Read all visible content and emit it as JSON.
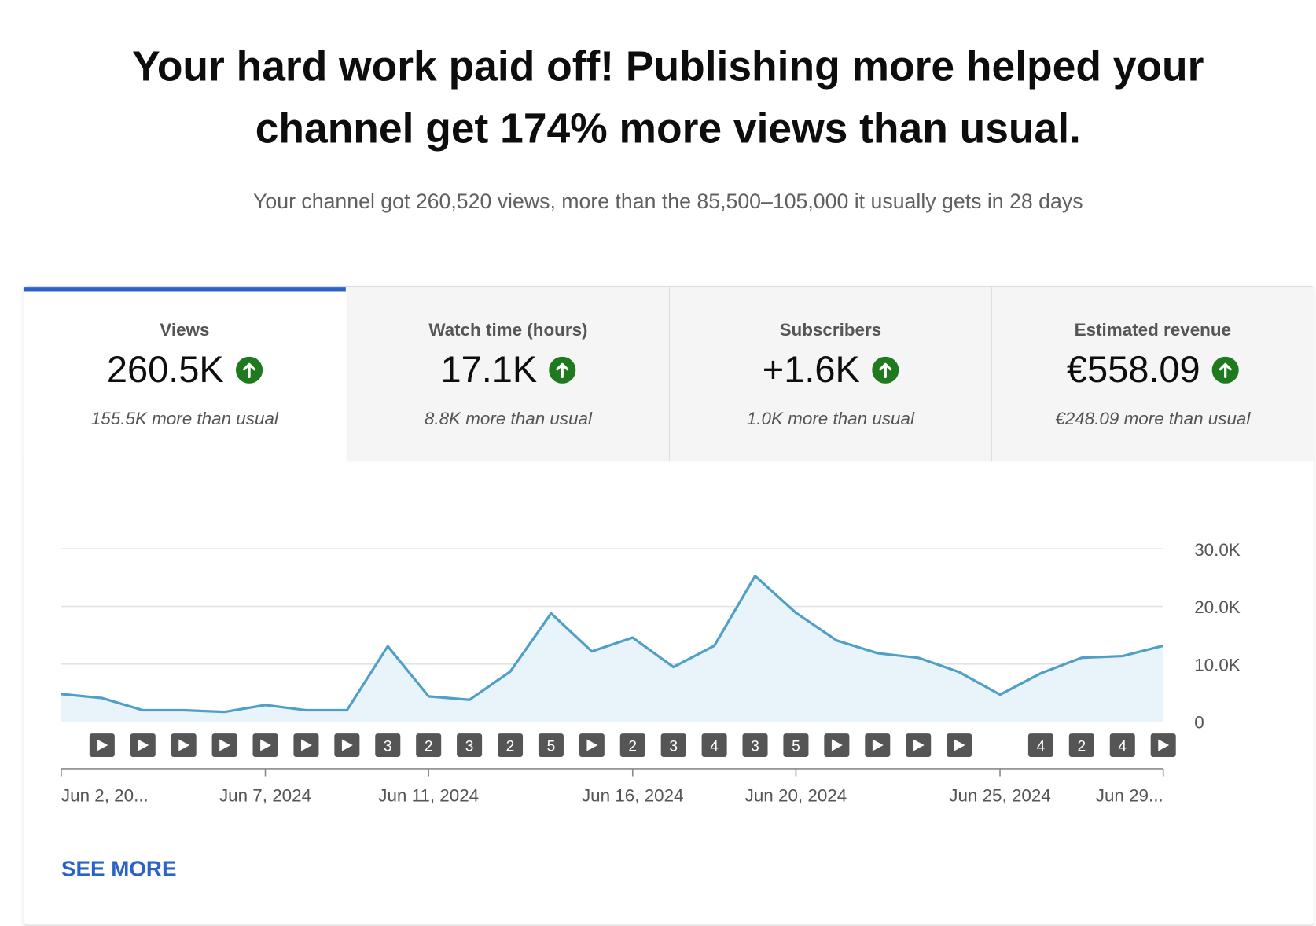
{
  "header": {
    "title": "Your hard work paid off! Publishing more helped your channel get 174% more views than usual.",
    "subtitle": "Your channel got 260,520 views, more than the 85,500–105,000 it usually gets in 28 days"
  },
  "tabs": [
    {
      "label": "Views",
      "value": "260.5K",
      "note": "155.5K more than usual"
    },
    {
      "label": "Watch time (hours)",
      "value": "17.1K",
      "note": "8.8K more than usual"
    },
    {
      "label": "Subscribers",
      "value": "+1.6K",
      "note": "1.0K more than usual"
    },
    {
      "label": "Estimated revenue",
      "value": "€558.09",
      "note": "€248.09 more than usual"
    }
  ],
  "chart_data": {
    "type": "line",
    "categories": [
      "Jun 2, 20...",
      null,
      null,
      null,
      null,
      "Jun 7, 2024",
      null,
      null,
      null,
      "Jun 11, 2024",
      null,
      null,
      null,
      null,
      "Jun 16, 2024",
      null,
      null,
      null,
      "Jun 20, 2024",
      null,
      null,
      null,
      null,
      "Jun 25, 2024",
      null,
      null,
      null,
      "Jun 29..."
    ],
    "values": [
      4800,
      4100,
      2000,
      2000,
      1700,
      2900,
      2000,
      2000,
      13100,
      4400,
      3800,
      8700,
      18800,
      12200,
      14600,
      9500,
      13200,
      25300,
      18900,
      14100,
      11900,
      11100,
      8600,
      4700,
      8400,
      11100,
      11400,
      13200
    ],
    "upload_counts": [
      0,
      1,
      1,
      1,
      1,
      1,
      1,
      1,
      3,
      2,
      3,
      2,
      5,
      1,
      2,
      3,
      4,
      3,
      5,
      1,
      1,
      1,
      1,
      0,
      4,
      2,
      4,
      1
    ],
    "color": "#4f9fc7",
    "ylim": [
      0,
      30000
    ],
    "yticks": [
      {
        "value": 0,
        "label": "0"
      },
      {
        "value": 10000,
        "label": "10.0K"
      },
      {
        "value": 20000,
        "label": "20.0K"
      },
      {
        "value": 30000,
        "label": "30.0K"
      }
    ],
    "grid": true
  },
  "see_more": "SEE MORE"
}
